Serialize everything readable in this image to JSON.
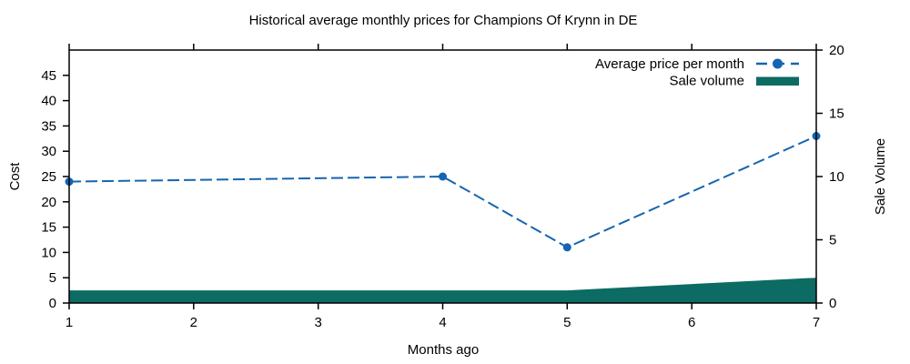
{
  "chart": {
    "title": "Historical average monthly prices for Champions Of Krynn in DE",
    "xlabel": "Months ago",
    "ylabel_left": "Cost",
    "ylabel_right": "Sale Volume",
    "legend": {
      "price_label": "Average price per month",
      "volume_label": "Sale volume"
    },
    "colors": {
      "price": "#1565b0",
      "volume": "#0c6b63",
      "axis": "#000000",
      "background": "#ffffff"
    }
  },
  "chart_data": {
    "type": "line",
    "title": "Historical average monthly prices for Champions Of Krynn in DE",
    "xlabel": "Months ago",
    "ylabel_left": "Cost",
    "ylabel_right": "Sale Volume",
    "x": [
      1,
      4,
      5,
      7
    ],
    "series": [
      {
        "name": "Average price per month",
        "type": "line",
        "axis": "left",
        "color": "#1565b0",
        "values": [
          24,
          25,
          11,
          33
        ]
      },
      {
        "name": "Sale volume",
        "type": "area",
        "axis": "right",
        "color": "#0c6b63",
        "values": [
          1,
          1,
          1,
          2
        ]
      }
    ],
    "x_lim": [
      1,
      7
    ],
    "y_left_lim": [
      0,
      50
    ],
    "y_right_lim": [
      0,
      20
    ],
    "x_ticks": [
      1,
      2,
      3,
      4,
      5,
      6,
      7
    ],
    "y_left_ticks": [
      0,
      5,
      10,
      15,
      20,
      25,
      30,
      35,
      40,
      45
    ],
    "y_right_ticks": [
      0,
      5,
      10,
      15,
      20
    ],
    "grid": false,
    "legend_position": "top-right-inside",
    "tick_style": "outside-mirrored"
  }
}
